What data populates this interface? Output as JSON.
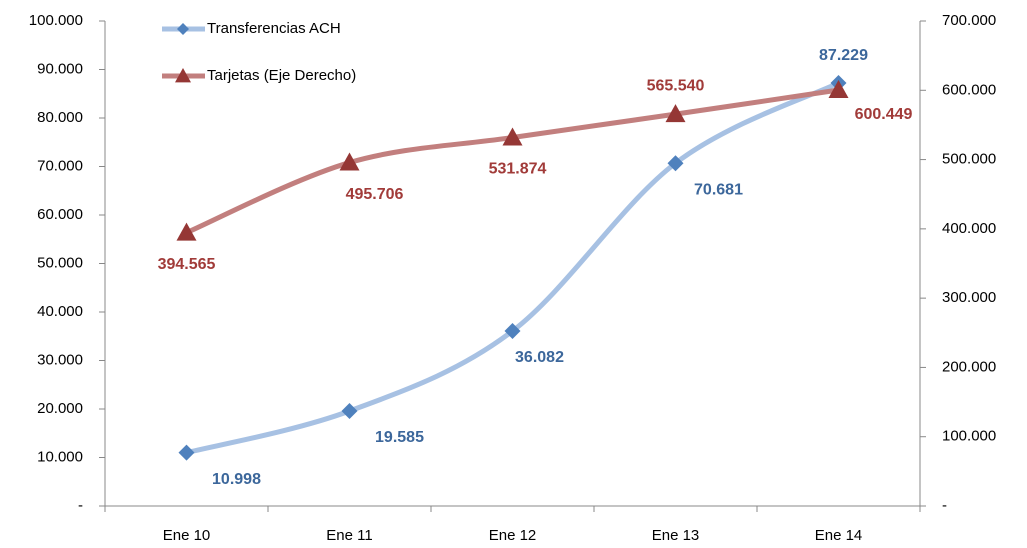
{
  "chart_data": {
    "type": "line",
    "categories": [
      "Ene 10",
      "Ene 11",
      "Ene 12",
      "Ene 13",
      "Ene 14"
    ],
    "series": [
      {
        "name": "Transferencias ACH",
        "color": "#4f81bd",
        "line_color": "#a7c1e3",
        "label_color": "#3c679b",
        "marker": "diamond",
        "values": [
          10998,
          19585,
          36082,
          70681,
          87229
        ],
        "value_labels": [
          "10.998",
          "19.585",
          "36.082",
          "70.681",
          "87.229"
        ]
      },
      {
        "name": "Tarjetas (Eje Derecho)",
        "color": "#953735",
        "line_color": "#c27f7e",
        "label_color": "#a13b39",
        "marker": "triangle",
        "axis": "y2",
        "values": [
          394565,
          495706,
          531874,
          565540,
          600449
        ],
        "value_labels": [
          "394.565",
          "495.706",
          "531.874",
          "565.540",
          "600.449"
        ]
      }
    ],
    "ylim": [
      0,
      100000
    ],
    "yticks": [
      {
        "value": 0,
        "label": "-"
      },
      {
        "value": 10000,
        "label": "10.000"
      },
      {
        "value": 20000,
        "label": "20.000"
      },
      {
        "value": 30000,
        "label": "30.000"
      },
      {
        "value": 40000,
        "label": "40.000"
      },
      {
        "value": 50000,
        "label": "50.000"
      },
      {
        "value": 60000,
        "label": "60.000"
      },
      {
        "value": 70000,
        "label": "70.000"
      },
      {
        "value": 80000,
        "label": "80.000"
      },
      {
        "value": 90000,
        "label": "90.000"
      },
      {
        "value": 100000,
        "label": "100.000"
      }
    ],
    "y2lim": [
      0,
      700000
    ],
    "y2ticks": [
      {
        "value": 0,
        "label": "-"
      },
      {
        "value": 100000,
        "label": "100.000"
      },
      {
        "value": 200000,
        "label": "200.000"
      },
      {
        "value": 300000,
        "label": "300.000"
      },
      {
        "value": 400000,
        "label": "400.000"
      },
      {
        "value": 500000,
        "label": "500.000"
      },
      {
        "value": 600000,
        "label": "600.000"
      },
      {
        "value": 700000,
        "label": "700.000"
      }
    ],
    "legend": "upper left",
    "grid": false,
    "smooth": true
  }
}
